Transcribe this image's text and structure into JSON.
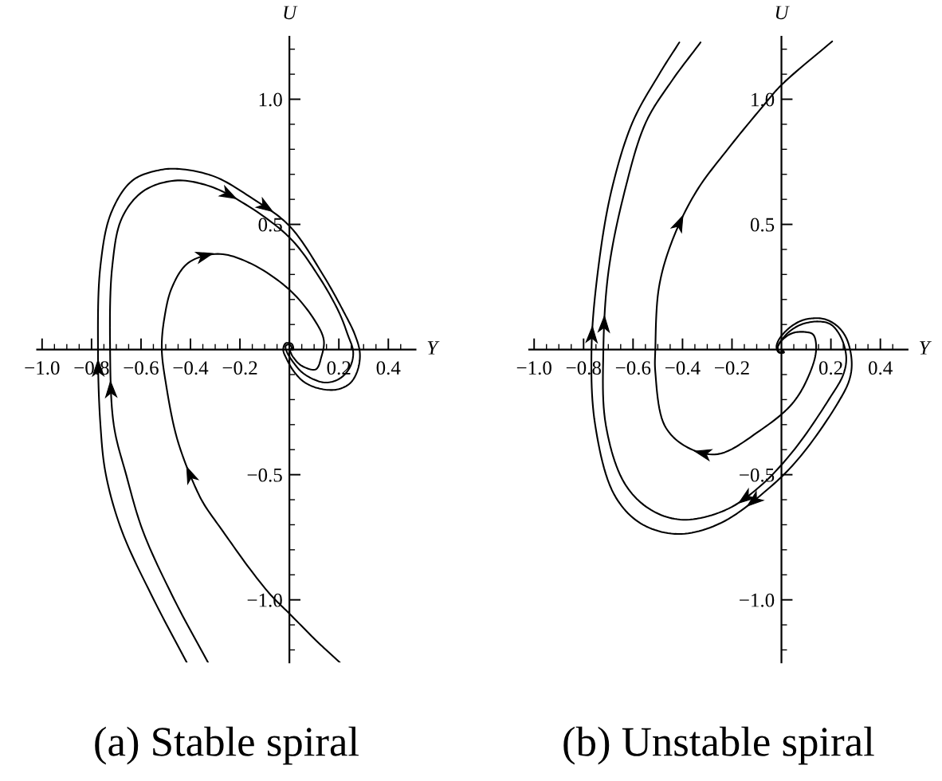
{
  "chart_data": [
    {
      "type": "line",
      "title": "(a) Stable spiral",
      "xlabel": "Y",
      "ylabel": "U",
      "xlim": [
        -1.02,
        0.51
      ],
      "ylim": [
        -1.25,
        1.25
      ],
      "line_style": "solid",
      "xticks": [
        {
          "value": -1.0,
          "label": "−1.0"
        },
        {
          "value": -0.95,
          "label": null
        },
        {
          "value": -0.9,
          "label": null
        },
        {
          "value": -0.85,
          "label": null
        },
        {
          "value": -0.8,
          "label": "−0.8"
        },
        {
          "value": -0.75,
          "label": null
        },
        {
          "value": -0.7,
          "label": null
        },
        {
          "value": -0.65,
          "label": null
        },
        {
          "value": -0.6,
          "label": "−0.6"
        },
        {
          "value": -0.55,
          "label": null
        },
        {
          "value": -0.5,
          "label": null
        },
        {
          "value": -0.45,
          "label": null
        },
        {
          "value": -0.4,
          "label": "−0.4"
        },
        {
          "value": -0.35,
          "label": null
        },
        {
          "value": -0.3,
          "label": null
        },
        {
          "value": -0.25,
          "label": null
        },
        {
          "value": -0.2,
          "label": "−0.2"
        },
        {
          "value": -0.15,
          "label": null
        },
        {
          "value": -0.1,
          "label": null
        },
        {
          "value": -0.05,
          "label": null
        },
        {
          "value": 0.05,
          "label": null
        },
        {
          "value": 0.1,
          "label": null
        },
        {
          "value": 0.15,
          "label": null
        },
        {
          "value": 0.2,
          "label": "0.2"
        },
        {
          "value": 0.25,
          "label": null
        },
        {
          "value": 0.3,
          "label": null
        },
        {
          "value": 0.35,
          "label": null
        },
        {
          "value": 0.4,
          "label": "0.4"
        },
        {
          "value": 0.45,
          "label": null
        }
      ],
      "yticks": [
        {
          "value": -1.2,
          "label": null
        },
        {
          "value": -1.1,
          "label": null
        },
        {
          "value": -1.0,
          "label": "−1.0"
        },
        {
          "value": -0.9,
          "label": null
        },
        {
          "value": -0.8,
          "label": null
        },
        {
          "value": -0.7,
          "label": null
        },
        {
          "value": -0.6,
          "label": null
        },
        {
          "value": -0.5,
          "label": "−0.5"
        },
        {
          "value": -0.4,
          "label": null
        },
        {
          "value": -0.3,
          "label": null
        },
        {
          "value": -0.2,
          "label": null
        },
        {
          "value": -0.1,
          "label": null
        },
        {
          "value": 0.1,
          "label": null
        },
        {
          "value": 0.2,
          "label": null
        },
        {
          "value": 0.3,
          "label": null
        },
        {
          "value": 0.4,
          "label": null
        },
        {
          "value": 0.5,
          "label": "0.5"
        },
        {
          "value": 0.6,
          "label": null
        },
        {
          "value": 0.7,
          "label": null
        },
        {
          "value": 0.8,
          "label": null
        },
        {
          "value": 0.9,
          "label": null
        },
        {
          "value": 1.0,
          "label": "1.0"
        },
        {
          "value": 1.1,
          "label": null
        },
        {
          "value": 1.2,
          "label": null
        }
      ],
      "series": [
        {
          "color": "#000000",
          "x": [
            -0.415,
            -0.548,
            -0.677,
            -0.742,
            -0.764,
            -0.774,
            -0.764,
            -0.72,
            -0.635,
            -0.52,
            -0.43,
            -0.3,
            -0.161,
            0.0,
            0.139,
            0.22,
            0.265,
            0.285,
            0.275,
            0.245,
            0.19,
            0.118,
            0.06,
            0.02,
            -0.01,
            -0.025,
            -0.015,
            0.01,
            0.015,
            0.0
          ],
          "values": [
            -1.25,
            -1.0,
            -0.726,
            -0.5,
            -0.302,
            0.0,
            0.335,
            0.548,
            0.675,
            0.718,
            0.72,
            0.69,
            0.611,
            0.494,
            0.293,
            0.15,
            0.059,
            -0.015,
            -0.085,
            -0.135,
            -0.16,
            -0.155,
            -0.13,
            -0.09,
            -0.04,
            0.0,
            0.025,
            0.022,
            0.0,
            0.0
          ]
        },
        {
          "color": "#000000",
          "x": [
            -0.329,
            -0.465,
            -0.592,
            -0.66,
            -0.71,
            -0.725,
            -0.716,
            -0.677,
            -0.592,
            -0.463,
            -0.33,
            -0.194,
            0.0,
            0.118,
            0.2,
            0.236,
            0.258,
            0.245,
            0.205,
            0.15,
            0.1,
            0.05,
            0.015,
            -0.01,
            -0.015,
            0.0,
            0.01,
            0.0
          ],
          "values": [
            -1.25,
            -1.0,
            -0.726,
            -0.5,
            -0.302,
            0.0,
            0.335,
            0.526,
            0.632,
            0.675,
            0.655,
            0.59,
            0.448,
            0.293,
            0.15,
            0.059,
            -0.01,
            -0.07,
            -0.115,
            -0.132,
            -0.12,
            -0.09,
            -0.05,
            -0.01,
            0.015,
            0.02,
            0.005,
            0.0
          ]
        },
        {
          "color": "#000000",
          "x": [
            0.204,
            0.118,
            0.0,
            -0.075,
            -0.161,
            -0.269,
            -0.344,
            -0.377,
            -0.43,
            -0.463,
            -0.497,
            -0.516,
            -0.506,
            -0.474,
            -0.409,
            -0.29,
            -0.161,
            0.0,
            0.1,
            0.139,
            0.129,
            0.107,
            0.05,
            0.015,
            0.0
          ],
          "values": [
            -1.25,
            -1.172,
            -1.055,
            -0.981,
            -0.875,
            -0.726,
            -0.62,
            -0.557,
            -0.429,
            -0.323,
            -0.15,
            0.0,
            0.123,
            0.25,
            0.346,
            0.382,
            0.346,
            0.239,
            0.12,
            0.038,
            -0.03,
            -0.079,
            -0.065,
            -0.03,
            0.0
          ]
        }
      ]
    },
    {
      "type": "line",
      "title": "(b) Unstable spiral",
      "xlabel": "Y",
      "ylabel": "U",
      "xlim": [
        -1.02,
        0.51
      ],
      "ylim": [
        -1.25,
        1.25
      ],
      "line_style": "solid",
      "xticks": [
        {
          "value": -1.0,
          "label": "−1.0"
        },
        {
          "value": -0.95,
          "label": null
        },
        {
          "value": -0.9,
          "label": null
        },
        {
          "value": -0.85,
          "label": null
        },
        {
          "value": -0.8,
          "label": "−0.8"
        },
        {
          "value": -0.75,
          "label": null
        },
        {
          "value": -0.7,
          "label": null
        },
        {
          "value": -0.65,
          "label": null
        },
        {
          "value": -0.6,
          "label": "−0.6"
        },
        {
          "value": -0.55,
          "label": null
        },
        {
          "value": -0.5,
          "label": null
        },
        {
          "value": -0.45,
          "label": null
        },
        {
          "value": -0.4,
          "label": "−0.4"
        },
        {
          "value": -0.35,
          "label": null
        },
        {
          "value": -0.3,
          "label": null
        },
        {
          "value": -0.25,
          "label": null
        },
        {
          "value": -0.2,
          "label": "−0.2"
        },
        {
          "value": -0.15,
          "label": null
        },
        {
          "value": -0.1,
          "label": null
        },
        {
          "value": -0.05,
          "label": null
        },
        {
          "value": 0.05,
          "label": null
        },
        {
          "value": 0.1,
          "label": null
        },
        {
          "value": 0.15,
          "label": null
        },
        {
          "value": 0.2,
          "label": "0.2"
        },
        {
          "value": 0.25,
          "label": null
        },
        {
          "value": 0.3,
          "label": null
        },
        {
          "value": 0.35,
          "label": null
        },
        {
          "value": 0.4,
          "label": "0.4"
        },
        {
          "value": 0.45,
          "label": null
        }
      ],
      "yticks": [
        {
          "value": -1.2,
          "label": null
        },
        {
          "value": -1.1,
          "label": null
        },
        {
          "value": -1.0,
          "label": "−1.0"
        },
        {
          "value": -0.9,
          "label": null
        },
        {
          "value": -0.8,
          "label": null
        },
        {
          "value": -0.7,
          "label": null
        },
        {
          "value": -0.6,
          "label": null
        },
        {
          "value": -0.5,
          "label": "−0.5"
        },
        {
          "value": -0.4,
          "label": null
        },
        {
          "value": -0.3,
          "label": null
        },
        {
          "value": -0.2,
          "label": null
        },
        {
          "value": -0.1,
          "label": null
        },
        {
          "value": 0.1,
          "label": null
        },
        {
          "value": 0.2,
          "label": null
        },
        {
          "value": 0.3,
          "label": null
        },
        {
          "value": 0.4,
          "label": null
        },
        {
          "value": 0.5,
          "label": "0.5"
        },
        {
          "value": 0.6,
          "label": null
        },
        {
          "value": 0.7,
          "label": null
        },
        {
          "value": 0.8,
          "label": null
        },
        {
          "value": 0.9,
          "label": null
        },
        {
          "value": 1.0,
          "label": "1.0"
        },
        {
          "value": 1.1,
          "label": null
        },
        {
          "value": 1.2,
          "label": null
        }
      ],
      "series": [
        {
          "color": "#000000",
          "x": [
            0.0,
            0.01,
            -0.012,
            -0.02,
            -0.01,
            0.03,
            0.08,
            0.13,
            0.18,
            0.23,
            0.265,
            0.284,
            0.275,
            0.226,
            0.075,
            -0.054,
            -0.247,
            -0.419,
            -0.57,
            -0.677,
            -0.753,
            -0.768,
            -0.742,
            -0.688,
            -0.602,
            -0.495,
            -0.413
          ],
          "values": [
            0.0,
            -0.012,
            -0.01,
            0.01,
            0.04,
            0.085,
            0.115,
            0.125,
            0.12,
            0.09,
            0.04,
            -0.047,
            -0.12,
            -0.217,
            -0.429,
            -0.557,
            -0.694,
            -0.737,
            -0.694,
            -0.578,
            -0.302,
            0.0,
            0.314,
            0.632,
            0.908,
            1.099,
            1.227
          ]
        },
        {
          "color": "#000000",
          "x": [
            0.0,
            0.008,
            -0.01,
            -0.015,
            -0.005,
            0.03,
            0.08,
            0.15,
            0.2,
            0.24,
            0.262,
            0.25,
            0.194,
            0.054,
            -0.086,
            -0.226,
            -0.398,
            -0.527,
            -0.634,
            -0.71,
            -0.72,
            -0.699,
            -0.634,
            -0.548,
            -0.44,
            -0.327
          ],
          "values": [
            0.0,
            -0.01,
            -0.008,
            0.008,
            0.03,
            0.07,
            0.1,
            0.112,
            0.1,
            0.05,
            -0.03,
            -0.1,
            -0.196,
            -0.397,
            -0.546,
            -0.641,
            -0.68,
            -0.641,
            -0.535,
            -0.302,
            0.0,
            0.314,
            0.632,
            0.908,
            1.078,
            1.227
          ]
        },
        {
          "color": "#000000",
          "x": [
            0.0,
            0.01,
            -0.01,
            -0.015,
            0.0,
            0.043,
            0.097,
            0.129,
            0.14,
            0.108,
            0.043,
            -0.086,
            -0.258,
            -0.387,
            -0.473,
            -0.51,
            -0.51,
            -0.495,
            -0.44,
            -0.344,
            -0.215,
            -0.075,
            0.0,
            0.205
          ],
          "values": [
            0.0,
            -0.01,
            -0.012,
            0.01,
            0.035,
            0.065,
            0.07,
            0.059,
            -0.004,
            -0.11,
            -0.217,
            -0.323,
            -0.418,
            -0.387,
            -0.302,
            -0.089,
            0.0,
            0.25,
            0.439,
            0.632,
            0.803,
            0.972,
            1.057,
            1.231
          ]
        }
      ]
    }
  ]
}
